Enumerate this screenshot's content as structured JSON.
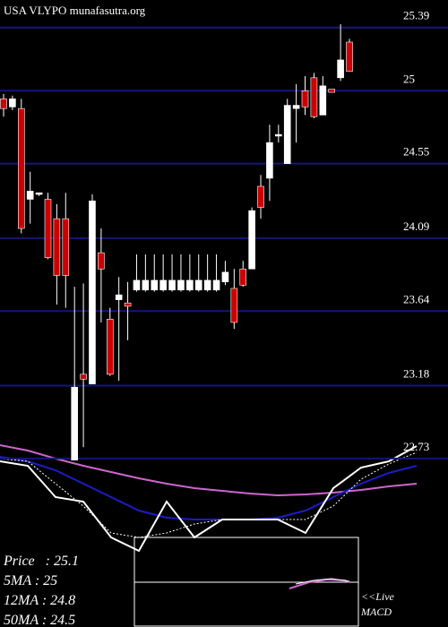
{
  "chart_data": [
    {
      "type": "candlestick",
      "title": "USA VLYPO munafasutra.org",
      "ylim": [
        21.69,
        25.56
      ],
      "yticks": [
        25.39,
        25,
        24.55,
        24.09,
        23.64,
        23.18,
        22.73
      ],
      "grid": true,
      "grid_color": "#16167a",
      "up_color": "#ffffff",
      "down_color": "#cc0000",
      "open": [
        24.95,
        24.9,
        24.89,
        24.33,
        24.36,
        24.33,
        24.21,
        24.21,
        22.72,
        23.25,
        23.19,
        24.0,
        23.59,
        23.71,
        23.69,
        23.77,
        23.77,
        23.77,
        23.77,
        23.77,
        23.77,
        23.77,
        23.77,
        23.77,
        23.77,
        23.82,
        23.78,
        23.9,
        23.9,
        24.41,
        24.46,
        24.72,
        24.55,
        24.89,
        25.0,
        25.08,
        24.85,
        25.01,
        25.08,
        25.3
      ],
      "high": [
        24.98,
        24.97,
        24.95,
        24.5,
        24.37,
        24.37,
        24.3,
        24.37,
        23.79,
        23.81,
        24.36,
        24.15,
        23.66,
        23.85,
        23.82,
        23.99,
        23.99,
        23.99,
        23.99,
        23.99,
        23.99,
        23.99,
        23.99,
        23.99,
        23.99,
        23.95,
        23.9,
        23.95,
        24.28,
        24.48,
        24.79,
        24.79,
        24.95,
        25.04,
        25.09,
        25.11,
        25.09,
        25.01,
        25.41,
        25.32
      ],
      "low": [
        24.84,
        24.88,
        24.12,
        24.18,
        24.35,
        23.96,
        23.68,
        23.66,
        22.72,
        22.8,
        23.19,
        23.57,
        23.24,
        23.21,
        23.46,
        23.76,
        23.76,
        23.76,
        23.76,
        23.76,
        23.76,
        23.76,
        23.76,
        23.76,
        23.76,
        23.8,
        23.53,
        23.79,
        23.9,
        24.21,
        24.32,
        24.68,
        24.55,
        24.68,
        24.85,
        24.83,
        24.85,
        24.99,
        25.06,
        25.12
      ],
      "close": [
        24.89,
        24.95,
        24.15,
        24.38,
        24.37,
        23.97,
        23.86,
        23.86,
        23.17,
        23.22,
        24.32,
        23.9,
        23.25,
        23.74,
        23.67,
        23.83,
        23.83,
        23.83,
        23.83,
        23.83,
        23.83,
        23.83,
        23.83,
        23.83,
        23.83,
        23.88,
        23.57,
        23.8,
        24.26,
        24.28,
        24.68,
        24.73,
        24.91,
        24.91,
        24.9,
        24.84,
        25.03,
        24.99,
        25.19,
        25.12
      ]
    },
    {
      "type": "line",
      "ylim": [
        0,
        100
      ],
      "series": [
        {
          "color": "#cc66cc",
          "values": [
            98.4,
            93.6,
            86.4,
            80,
            74.4,
            68.8,
            64,
            60,
            57.6,
            55.2,
            53.6,
            54.4,
            56,
            58.4,
            61.6,
            64
          ]
        },
        {
          "color": "#1c1cc8",
          "values": [
            88,
            84,
            76,
            64,
            52,
            40,
            33.6,
            32,
            32,
            32,
            33.6,
            40,
            52,
            64,
            73.6,
            80
          ]
        },
        {
          "color": "#ffffff",
          "dashed": true,
          "values": [
            86.4,
            84,
            64,
            44,
            20,
            16,
            20,
            28,
            32,
            32,
            32,
            32,
            44,
            68,
            81.6,
            92
          ]
        },
        {
          "color": "#ffffff",
          "values": [
            84,
            80,
            52,
            48,
            16,
            4,
            48,
            16,
            32,
            32,
            32,
            20,
            60,
            78.4,
            84,
            97.6
          ]
        }
      ]
    },
    {
      "type": "text",
      "lines": [
        "Price   : 25.1",
        "5MA : 25",
        "12MA : 24.8",
        "50MA : 24.5"
      ],
      "macd_label": [
        "<<Live",
        "MACD"
      ]
    }
  ]
}
